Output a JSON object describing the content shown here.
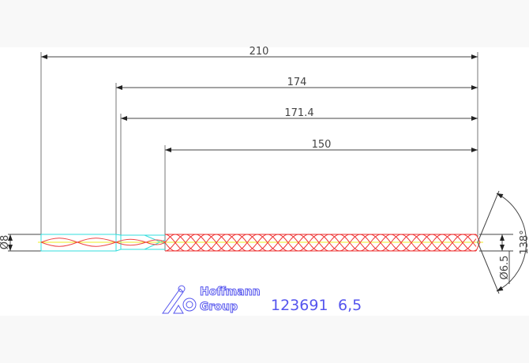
{
  "dimensions": {
    "overall_length": "210",
    "length_174": "174",
    "length_171_4": "171.4",
    "flute_length": "150",
    "shank_diameter": "Ø8",
    "drill_diameter": "Ø6.5",
    "point_angle": "138°"
  },
  "logo": {
    "line1": "Hoffmann",
    "line2": "Group"
  },
  "article": {
    "number": "123691",
    "size": "6,5"
  },
  "colors": {
    "dimension": "#444444",
    "flute": "#ee3333",
    "shank": "#33dddd",
    "centerline": "#eeee22",
    "logo": "#5555ee"
  }
}
